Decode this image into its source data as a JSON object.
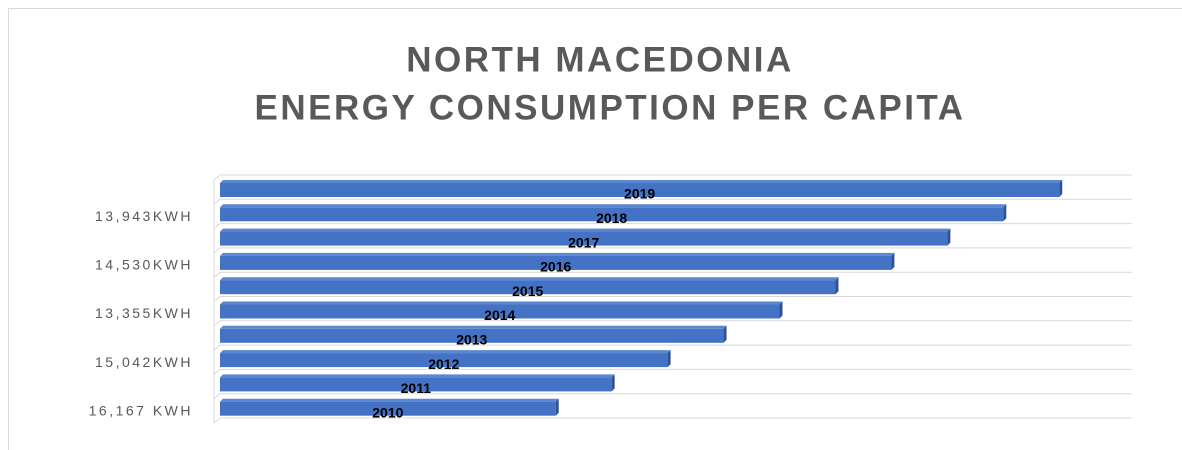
{
  "chart_data": {
    "type": "bar",
    "orientation": "horizontal",
    "title": [
      "NORTH MACEDONIA",
      "ENERGY CONSUMPTION PER CAPITA"
    ],
    "categories": [
      "16,167 KWH",
      null,
      "15,042KWH",
      null,
      "13,355KWH",
      null,
      "14,530KWH",
      null,
      "13,943KWH",
      null
    ],
    "values": [
      2010,
      2011,
      2012,
      2013,
      2014,
      2015,
      2016,
      2017,
      2018,
      2019
    ],
    "color": "#4472c4",
    "xlim": [
      2004,
      2020.3
    ],
    "grid": true
  }
}
